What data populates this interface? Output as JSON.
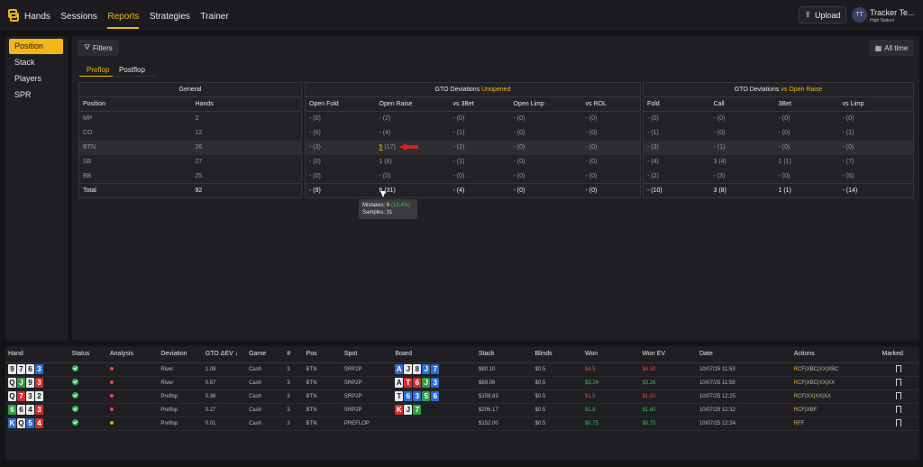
{
  "nav": {
    "items": [
      "Hands",
      "Sessions",
      "Reports",
      "Strategies",
      "Trainer"
    ],
    "active": "Reports"
  },
  "header": {
    "upload_label": "Upload",
    "avatar_initials": "TT",
    "user_name": "Tracker Te...",
    "user_sub": "High Stakes"
  },
  "sidebar": {
    "items": [
      "Position",
      "Stack",
      "Players",
      "SPR"
    ],
    "active": "Position"
  },
  "toolbar": {
    "filters_label": "Filters",
    "alltime_label": "All time"
  },
  "subtabs": [
    "Preflop",
    "Postflop"
  ],
  "general": {
    "title": "General",
    "columns": [
      "Position",
      "Hands"
    ],
    "rows": [
      [
        "MP",
        "2"
      ],
      [
        "CO",
        "12"
      ],
      [
        "BTN",
        "26"
      ],
      [
        "SB",
        "27"
      ],
      [
        "BB",
        "25"
      ],
      [
        "Total",
        "92"
      ]
    ]
  },
  "unopened": {
    "title_prefix": "GTO Deviations ",
    "title_accent": "Unopened",
    "columns": [
      "Open Fold",
      "Open Raise",
      "vs 3Bet",
      "Open Limp",
      "vs ROL"
    ],
    "rows": [
      [
        "- (0)",
        "- (2)",
        "- (0)",
        "- (0)",
        "- (0)"
      ],
      [
        "- (6)",
        "- (4)",
        "- (1)",
        "- (0)",
        "- (0)"
      ],
      [
        "- (3)",
        "(17)",
        "- (2)",
        "- (0)",
        "- (0)"
      ],
      [
        "- (0)",
        "1 (8)",
        "- (1)",
        "- (0)",
        "- (0)"
      ],
      [
        "- (0)",
        "- (0)",
        "- (0)",
        "- (0)",
        "- (0)"
      ],
      [
        "- (9)",
        "6 (31)",
        "- (4)",
        "- (0)",
        "- (0)"
      ]
    ],
    "btn_raise_mistakes": "5"
  },
  "open_raise": {
    "title_prefix": "GTO Deviations ",
    "title_accent": "vs Open Raise",
    "columns": [
      "Fold",
      "Call",
      "3Bet",
      "vs Limp"
    ],
    "rows": [
      [
        "- (0)",
        "- (0)",
        "- (0)",
        "- (0)"
      ],
      [
        "- (1)",
        "- (0)",
        "- (0)",
        "- (1)"
      ],
      [
        "- (3)",
        "- (1)",
        "- (0)",
        "- (0)"
      ],
      [
        "- (4)",
        "3 (4)",
        "1 (1)",
        "- (7)"
      ],
      [
        "- (2)",
        "- (3)",
        "- (0)",
        "- (6)"
      ],
      [
        "- (10)",
        "3 (8)",
        "1 (1)",
        "- (14)"
      ]
    ]
  },
  "tooltip": {
    "mistakes_label": "Mistakes: 6",
    "mistakes_pct": "(19.4%)",
    "samples_label": "Samples: 31"
  },
  "hands_table": {
    "columns": [
      "Hand",
      "Status",
      "Analysis",
      "Deviation",
      "GTO ΔEV ↓",
      "Game",
      "#",
      "Pos",
      "Spot",
      "Board",
      "Stack",
      "Blinds",
      "Won",
      "Won EV",
      "Date",
      "Actions",
      "Marked"
    ],
    "rows": [
      {
        "hand": [
          [
            "9",
            "s"
          ],
          [
            "7",
            "s"
          ],
          [
            "6",
            "s"
          ],
          [
            "3",
            "d"
          ]
        ],
        "analysis": "red",
        "deviation": "River",
        "ev": "1.08",
        "game": "Cash",
        "num": "3",
        "pos": "BTN",
        "spot": "SRP2P",
        "board": [
          [
            "A",
            "d"
          ],
          [
            "J",
            "s"
          ],
          [
            "8",
            "s"
          ],
          [
            "J",
            "d"
          ],
          [
            "7",
            "d"
          ]
        ],
        "stack": "$80.10",
        "blinds": "$0.5",
        "won": "$4.5",
        "won_color": "#e24b4b",
        "won_ev": "$4.50",
        "date": "10/07/25 11:53",
        "actions": "RCF|XBC|XX|XBC"
      },
      {
        "hand": [
          [
            "Q",
            "s"
          ],
          [
            "J",
            "c"
          ],
          [
            "9",
            "s"
          ],
          [
            "3",
            "h"
          ]
        ],
        "analysis": "red",
        "deviation": "River",
        "ev": "0.67",
        "game": "Cash",
        "num": "3",
        "pos": "BTN",
        "spot": "SRP2P",
        "board": [
          [
            "A",
            "s"
          ],
          [
            "T",
            "h"
          ],
          [
            "6",
            "h"
          ],
          [
            "J",
            "c"
          ],
          [
            "3",
            "d"
          ]
        ],
        "stack": "$89.06",
        "blinds": "$0.5",
        "won": "$3.26",
        "won_color": "#3fbf58",
        "won_ev": "$3.26",
        "date": "10/07/25 11:58",
        "actions": "RCF|XBC|XX|XX"
      },
      {
        "hand": [
          [
            "Q",
            "s"
          ],
          [
            "7",
            "h"
          ],
          [
            "3",
            "s"
          ],
          [
            "2",
            "s"
          ]
        ],
        "analysis": "red",
        "deviation": "Preflop",
        "ev": "0.36",
        "game": "Cash",
        "num": "3",
        "pos": "BTN",
        "spot": "SRP2P",
        "board": [
          [
            "T",
            "s"
          ],
          [
            "6",
            "d"
          ],
          [
            "3",
            "d"
          ],
          [
            "5",
            "c"
          ],
          [
            "6",
            "d"
          ]
        ],
        "stack": "$159.83",
        "blinds": "$0.5",
        "won": "$1.5",
        "won_color": "#e24b4b",
        "won_ev": "$1.50",
        "date": "10/07/25 12:25",
        "actions": "RCF|XX|XX|XX"
      },
      {
        "hand": [
          [
            "6",
            "c"
          ],
          [
            "6",
            "s"
          ],
          [
            "4",
            "s"
          ],
          [
            "3",
            "h"
          ]
        ],
        "analysis": "red",
        "deviation": "Preflop",
        "ev": "0.27",
        "game": "Cash",
        "num": "3",
        "pos": "BTN",
        "spot": "SRP2P",
        "board": [
          [
            "K",
            "h"
          ],
          [
            "J",
            "s"
          ],
          [
            "7",
            "c"
          ]
        ],
        "stack": "$206.17",
        "blinds": "$0.5",
        "won": "$1.8",
        "won_color": "#3fbf58",
        "won_ev": "$1.80",
        "date": "10/07/25 12:32",
        "actions": "RCF|XBF"
      },
      {
        "hand": [
          [
            "K",
            "d"
          ],
          [
            "Q",
            "s"
          ],
          [
            "5",
            "d"
          ],
          [
            "4",
            "h"
          ]
        ],
        "analysis": "orange",
        "deviation": "Preflop",
        "ev": "0.01",
        "game": "Cash",
        "num": "3",
        "pos": "BTN",
        "spot": "PREFLOP",
        "board": [],
        "stack": "$152.00",
        "blinds": "$0.5",
        "won": "$0.75",
        "won_color": "#3fbf58",
        "won_ev": "$0.75",
        "date": "10/07/25 12:24",
        "actions": "RFF"
      }
    ]
  }
}
